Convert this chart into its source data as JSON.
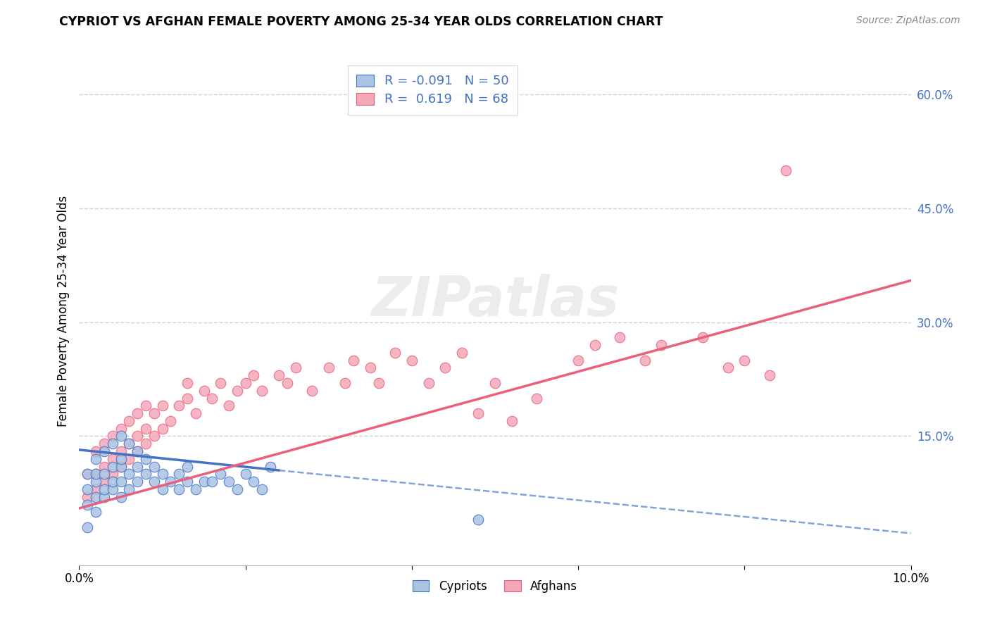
{
  "title": "CYPRIOT VS AFGHAN FEMALE POVERTY AMONG 25-34 YEAR OLDS CORRELATION CHART",
  "source": "Source: ZipAtlas.com",
  "ylabel": "Female Poverty Among 25-34 Year Olds",
  "xlim": [
    0.0,
    0.1
  ],
  "ylim": [
    -0.02,
    0.65
  ],
  "xticks": [
    0.0,
    0.02,
    0.04,
    0.06,
    0.08,
    0.1
  ],
  "xtick_labels": [
    "0.0%",
    "",
    "",
    "",
    "",
    "10.0%"
  ],
  "yticks_right": [
    0.15,
    0.3,
    0.45,
    0.6
  ],
  "ytick_right_labels": [
    "15.0%",
    "30.0%",
    "45.0%",
    "60.0%"
  ],
  "legend_entry1": "R = -0.091   N = 50",
  "legend_entry2": "R =  0.619   N = 68",
  "cypriot_color": "#aac4e2",
  "afghan_color": "#f4a8b8",
  "cypriot_line_color": "#4472c4",
  "afghan_line_color": "#e8607a",
  "background_color": "#ffffff",
  "watermark": "ZIPatlas",
  "grid_color": "#cccccc",
  "legend_label_color": "#4472c4",
  "cypriot_scatter_x": [
    0.001,
    0.001,
    0.001,
    0.002,
    0.002,
    0.002,
    0.002,
    0.002,
    0.003,
    0.003,
    0.003,
    0.003,
    0.004,
    0.004,
    0.004,
    0.004,
    0.005,
    0.005,
    0.005,
    0.005,
    0.005,
    0.006,
    0.006,
    0.006,
    0.007,
    0.007,
    0.007,
    0.008,
    0.008,
    0.009,
    0.009,
    0.01,
    0.01,
    0.011,
    0.012,
    0.012,
    0.013,
    0.013,
    0.014,
    0.015,
    0.016,
    0.017,
    0.018,
    0.019,
    0.02,
    0.021,
    0.022,
    0.023,
    0.048,
    0.001
  ],
  "cypriot_scatter_y": [
    0.06,
    0.08,
    0.1,
    0.05,
    0.07,
    0.09,
    0.1,
    0.12,
    0.07,
    0.08,
    0.1,
    0.13,
    0.08,
    0.09,
    0.11,
    0.14,
    0.07,
    0.09,
    0.11,
    0.12,
    0.15,
    0.08,
    0.1,
    0.14,
    0.09,
    0.11,
    0.13,
    0.1,
    0.12,
    0.09,
    0.11,
    0.08,
    0.1,
    0.09,
    0.08,
    0.1,
    0.09,
    0.11,
    0.08,
    0.09,
    0.09,
    0.1,
    0.09,
    0.08,
    0.1,
    0.09,
    0.08,
    0.11,
    0.04,
    0.03
  ],
  "afghan_scatter_x": [
    0.001,
    0.001,
    0.002,
    0.002,
    0.002,
    0.003,
    0.003,
    0.003,
    0.004,
    0.004,
    0.004,
    0.005,
    0.005,
    0.005,
    0.006,
    0.006,
    0.006,
    0.007,
    0.007,
    0.007,
    0.008,
    0.008,
    0.008,
    0.009,
    0.009,
    0.01,
    0.01,
    0.011,
    0.012,
    0.013,
    0.013,
    0.014,
    0.015,
    0.016,
    0.017,
    0.018,
    0.019,
    0.02,
    0.021,
    0.022,
    0.024,
    0.025,
    0.026,
    0.028,
    0.03,
    0.032,
    0.033,
    0.035,
    0.036,
    0.038,
    0.04,
    0.042,
    0.044,
    0.046,
    0.048,
    0.05,
    0.052,
    0.055,
    0.06,
    0.062,
    0.065,
    0.068,
    0.07,
    0.075,
    0.078,
    0.08,
    0.083,
    0.085
  ],
  "afghan_scatter_y": [
    0.07,
    0.1,
    0.08,
    0.1,
    0.13,
    0.09,
    0.11,
    0.14,
    0.1,
    0.12,
    0.15,
    0.11,
    0.13,
    0.16,
    0.12,
    0.14,
    0.17,
    0.13,
    0.15,
    0.18,
    0.14,
    0.16,
    0.19,
    0.15,
    0.18,
    0.16,
    0.19,
    0.17,
    0.19,
    0.2,
    0.22,
    0.18,
    0.21,
    0.2,
    0.22,
    0.19,
    0.21,
    0.22,
    0.23,
    0.21,
    0.23,
    0.22,
    0.24,
    0.21,
    0.24,
    0.22,
    0.25,
    0.24,
    0.22,
    0.26,
    0.25,
    0.22,
    0.24,
    0.26,
    0.18,
    0.22,
    0.17,
    0.2,
    0.25,
    0.27,
    0.28,
    0.25,
    0.27,
    0.28,
    0.24,
    0.25,
    0.23,
    0.5
  ],
  "cyp_line_x0": 0.0,
  "cyp_line_y0": 0.132,
  "cyp_line_x1": 0.024,
  "cyp_line_y1": 0.105,
  "cyp_line_x2": 0.1,
  "cyp_line_y2": 0.022,
  "afg_line_x0": 0.0,
  "afg_line_y0": 0.055,
  "afg_line_x1": 0.1,
  "afg_line_y1": 0.355
}
